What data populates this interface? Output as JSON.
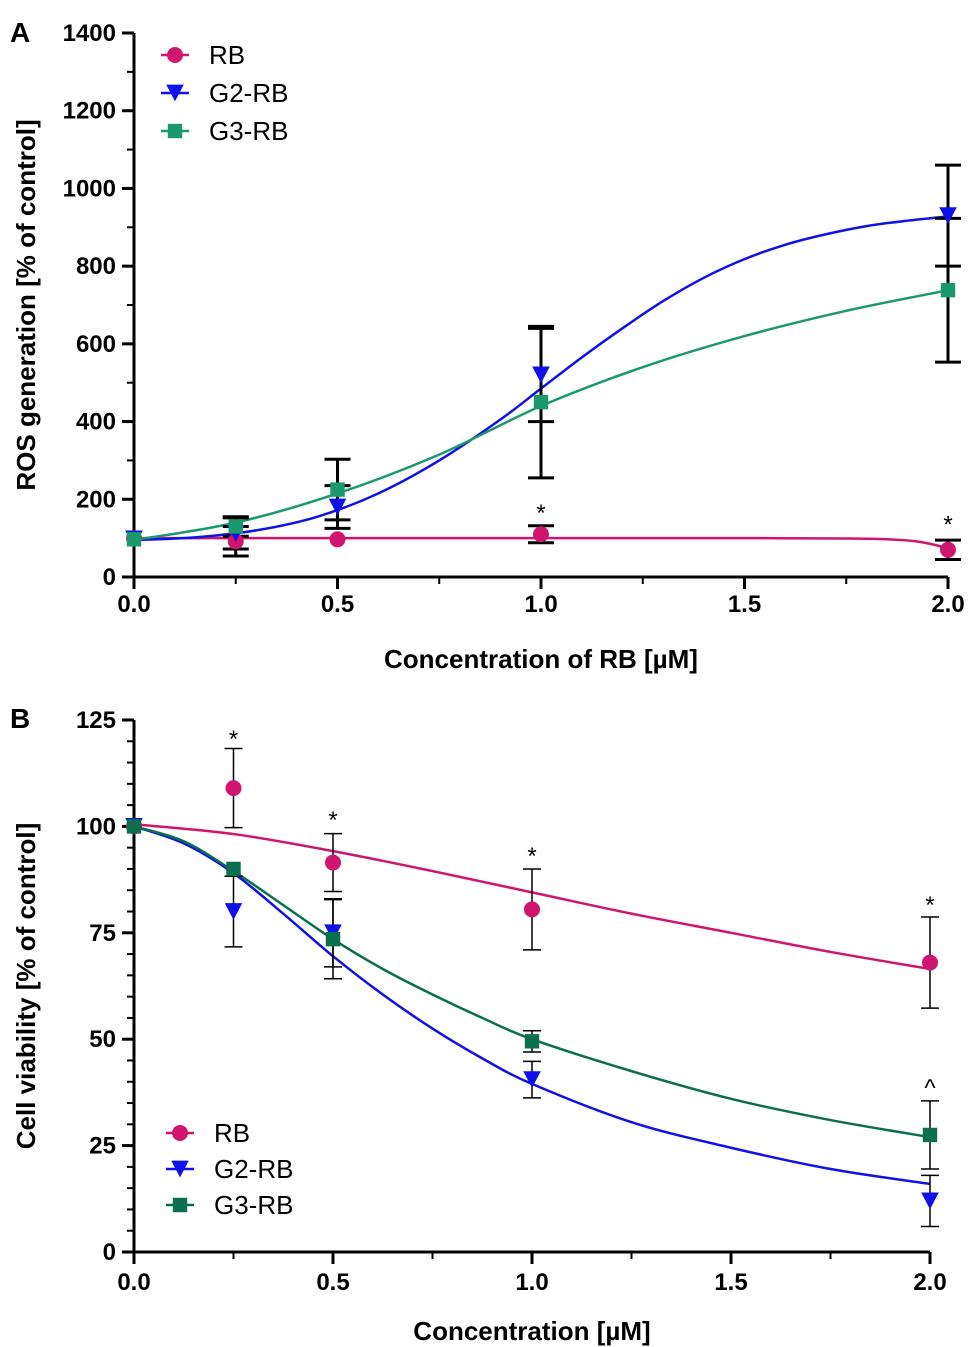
{
  "chart_data": [
    {
      "type": "scatter",
      "panel_label": "A",
      "xlabel": "Concentration of RB [µM]",
      "ylabel": "ROS generation [% of control]",
      "xlim": [
        0,
        2
      ],
      "ylim": [
        0,
        1400
      ],
      "xticks": [
        "0.0",
        "0.5",
        "1.0",
        "1.5",
        "2.0"
      ],
      "yticks": [
        "0",
        "200",
        "400",
        "600",
        "800",
        "1000",
        "1200",
        "1400"
      ],
      "x_minor_ticks": [
        0.25,
        0.75,
        1.25,
        1.75
      ],
      "y_minor_ticks": [
        100,
        300,
        500,
        700,
        900,
        1100,
        1300
      ],
      "legend_position": "top-left",
      "fitted_curves": true,
      "series": [
        {
          "name": "RB",
          "marker": "circle",
          "color": "#d0156f",
          "x": [
            0,
            0.25,
            0.5,
            1,
            2
          ],
          "y": [
            100,
            92,
            97,
            110,
            70
          ],
          "err": [
            0,
            38,
            0,
            22,
            25
          ],
          "fit": [
            [
              0,
              100
            ],
            [
              0.25,
              100
            ],
            [
              0.5,
              100
            ],
            [
              0.75,
              100
            ],
            [
              1,
              100
            ],
            [
              1.25,
              100
            ],
            [
              1.5,
              100
            ],
            [
              1.75,
              99
            ],
            [
              1.85,
              97
            ],
            [
              1.92,
              92
            ],
            [
              1.97,
              82
            ],
            [
              2,
              72
            ]
          ]
        },
        {
          "name": "G2-RB",
          "marker": "triangle-down",
          "color": "#1010e8",
          "x": [
            0,
            0.25,
            0.5,
            1,
            2
          ],
          "y": [
            98,
            112,
            180,
            520,
            930
          ],
          "err": [
            0,
            40,
            55,
            120,
            130
          ],
          "fit": [
            [
              0,
              95
            ],
            [
              0.15,
              102
            ],
            [
              0.3,
              120
            ],
            [
              0.45,
              155
            ],
            [
              0.6,
              215
            ],
            [
              0.75,
              300
            ],
            [
              0.9,
              405
            ],
            [
              1,
              485
            ],
            [
              1.1,
              565
            ],
            [
              1.2,
              640
            ],
            [
              1.3,
              710
            ],
            [
              1.4,
              770
            ],
            [
              1.5,
              818
            ],
            [
              1.6,
              855
            ],
            [
              1.7,
              882
            ],
            [
              1.8,
              903
            ],
            [
              1.9,
              917
            ],
            [
              2,
              928
            ]
          ]
        },
        {
          "name": "G3-RB",
          "marker": "square",
          "color": "#1a9a6c",
          "x": [
            0,
            0.25,
            0.5,
            1,
            2
          ],
          "y": [
            97,
            130,
            225,
            450,
            738
          ],
          "err": [
            0,
            25,
            78,
            195,
            185
          ],
          "fit": [
            [
              0,
              95
            ],
            [
              0.25,
              140
            ],
            [
              0.5,
              215
            ],
            [
              0.75,
              315
            ],
            [
              1,
              440
            ],
            [
              1.25,
              540
            ],
            [
              1.5,
              620
            ],
            [
              1.75,
              685
            ],
            [
              2,
              738
            ]
          ]
        }
      ],
      "annotations": [
        {
          "text": "*",
          "x": 1,
          "y": 170
        },
        {
          "text": "*",
          "x": 2,
          "y": 140
        }
      ]
    },
    {
      "type": "scatter",
      "panel_label": "B",
      "xlabel": "Concentration [µM]",
      "ylabel": "Cell viability [% of control]",
      "xlim": [
        0,
        2
      ],
      "ylim": [
        0,
        125
      ],
      "xticks": [
        "0.0",
        "0.5",
        "1.0",
        "1.5",
        "2.0"
      ],
      "yticks": [
        "0",
        "25",
        "50",
        "75",
        "100",
        "125"
      ],
      "x_minor_ticks": [
        0.25,
        0.75,
        1.25,
        1.75
      ],
      "y_minor_ticks": [
        5,
        10,
        15,
        20,
        30,
        35,
        40,
        45,
        55,
        60,
        65,
        70,
        80,
        85,
        90,
        95,
        105,
        110,
        115,
        120
      ],
      "legend_position": "bottom-left",
      "fitted_curves": true,
      "series": [
        {
          "name": "RB",
          "marker": "circle",
          "color": "#d0156f",
          "x": [
            0,
            0.25,
            0.5,
            1,
            2
          ],
          "y": [
            100,
            109,
            91.5,
            80.5,
            68
          ],
          "err": [
            0,
            9.3,
            6.8,
            9.5,
            10.7
          ],
          "fit": [
            [
              0,
              100.5
            ],
            [
              0.25,
              98.2
            ],
            [
              0.5,
              94.2
            ],
            [
              0.75,
              89.5
            ],
            [
              1,
              84.5
            ],
            [
              1.25,
              79.5
            ],
            [
              1.5,
              75
            ],
            [
              1.75,
              70.5
            ],
            [
              2,
              66.5
            ]
          ]
        },
        {
          "name": "G2-RB",
          "marker": "triangle-down",
          "color": "#1010e8",
          "x": [
            0,
            0.25,
            0.5,
            1,
            2
          ],
          "y": [
            100,
            80,
            75,
            40.5,
            12
          ],
          "err": [
            0,
            8.3,
            8,
            4.3,
            6
          ],
          "fit": [
            [
              0,
              100
            ],
            [
              0.125,
              96
            ],
            [
              0.25,
              89
            ],
            [
              0.375,
              79.5
            ],
            [
              0.5,
              69.5
            ],
            [
              0.625,
              60.5
            ],
            [
              0.75,
              52.5
            ],
            [
              0.875,
              45.5
            ],
            [
              1,
              39.5
            ],
            [
              1.25,
              30.5
            ],
            [
              1.5,
              24.5
            ],
            [
              1.75,
              19.5
            ],
            [
              2,
              16
            ]
          ]
        },
        {
          "name": "G3-RB",
          "marker": "square",
          "color": "#0b6e4f",
          "x": [
            0,
            0.25,
            0.5,
            1,
            2
          ],
          "y": [
            100,
            90,
            73.5,
            49.5,
            27.5
          ],
          "err": [
            0,
            0,
            9.3,
            2.5,
            8
          ],
          "fit": [
            [
              0,
              100
            ],
            [
              0.125,
              96.5
            ],
            [
              0.25,
              89.5
            ],
            [
              0.375,
              81.5
            ],
            [
              0.5,
              73.5
            ],
            [
              0.625,
              66.5
            ],
            [
              0.75,
              60.5
            ],
            [
              0.875,
              55
            ],
            [
              1,
              50
            ],
            [
              1.25,
              42.5
            ],
            [
              1.5,
              36
            ],
            [
              1.75,
              31
            ],
            [
              2,
              27
            ]
          ]
        }
      ],
      "annotations": [
        {
          "text": "*",
          "x": 0.25,
          "y": 121
        },
        {
          "text": "*",
          "x": 0.5,
          "y": 102
        },
        {
          "text": "*",
          "x": 1,
          "y": 93.5
        },
        {
          "text": "*",
          "x": 2,
          "y": 82
        },
        {
          "text": "^",
          "x": 2,
          "y": 39
        }
      ]
    }
  ]
}
